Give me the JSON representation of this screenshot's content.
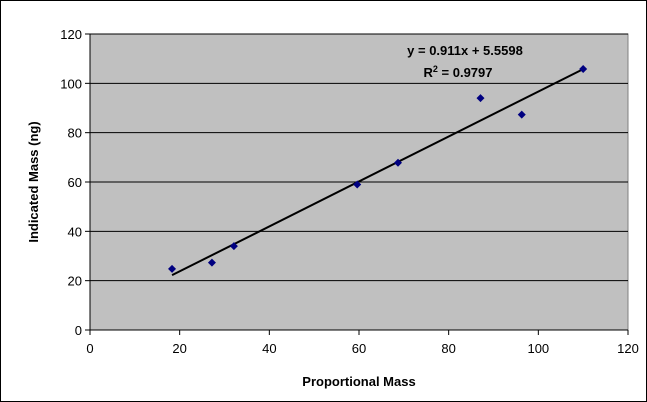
{
  "chart_data": {
    "type": "scatter",
    "xlabel": "Proportional Mass",
    "ylabel": "Indicated Mass (ng)",
    "xlim": [
      0,
      120
    ],
    "ylim": [
      0,
      120
    ],
    "x_ticks": [
      0,
      20,
      40,
      60,
      80,
      100,
      120
    ],
    "y_ticks": [
      0,
      20,
      40,
      60,
      80,
      100,
      120
    ],
    "grid": "horizontal",
    "series": [
      {
        "x": [
          18.3,
          27.2,
          32.1,
          59.6,
          68.7,
          87.1,
          96.3,
          110.0
        ],
        "y": [
          24.8,
          27.3,
          34.0,
          59.0,
          67.8,
          94.0,
          87.3,
          105.8
        ]
      }
    ],
    "trendline": {
      "type": "linear",
      "slope": 0.911,
      "intercept": 5.5598,
      "x_range": [
        18.3,
        110.0
      ],
      "equation_label": "y = 0.911x + 5.5598",
      "r2_prefix": "R",
      "r2_sup": "2",
      "r2_value": " = 0.9797"
    },
    "colors": {
      "plot_area": "#c0c0c0",
      "marker": "#000080",
      "trendline": "#000000",
      "gridline": "#000000"
    }
  }
}
